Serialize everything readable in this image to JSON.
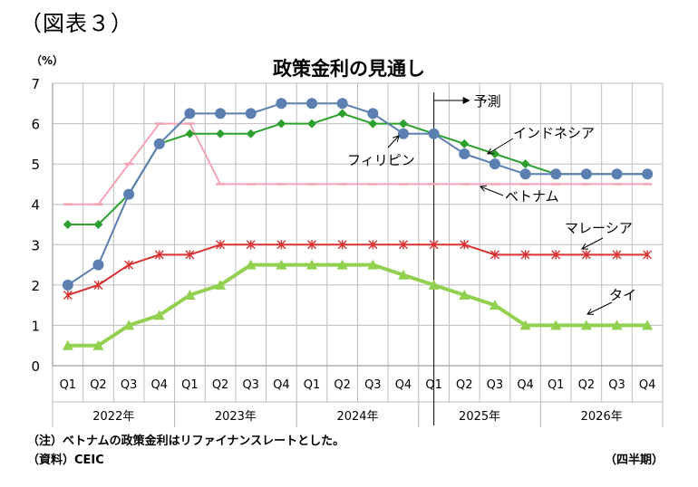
{
  "figure_label": "（図表３）",
  "notes": {
    "note1": "（注）ベトナムの政策金利はリファイナンスレートとした。",
    "source": "（資料）CEIC",
    "period_unit": "（四半期）"
  },
  "chart_data": {
    "type": "line",
    "title": "政策金利の見通し",
    "ylabel": "（%）",
    "ylim": [
      0,
      7
    ],
    "yticks": [
      0,
      1,
      2,
      3,
      4,
      5,
      6,
      7
    ],
    "grid": true,
    "categories": [
      "Q1",
      "Q2",
      "Q3",
      "Q4",
      "Q1",
      "Q2",
      "Q3",
      "Q4",
      "Q1",
      "Q2",
      "Q3",
      "Q4",
      "Q1",
      "Q2",
      "Q3",
      "Q4",
      "Q1",
      "Q2",
      "Q3",
      "Q4"
    ],
    "year_groups": [
      {
        "label": "2022年",
        "span": 4
      },
      {
        "label": "2023年",
        "span": 4
      },
      {
        "label": "2024年",
        "span": 4
      },
      {
        "label": "2025年",
        "span": 4
      },
      {
        "label": "2026年",
        "span": 4
      }
    ],
    "forecast_start_index": 12.5,
    "forecast_label": "予測",
    "series": [
      {
        "name": "ベトナム",
        "color": "#f4a3b4",
        "marker": "dash",
        "width": 2,
        "values": [
          4,
          4,
          5,
          6,
          6,
          4.5,
          4.5,
          4.5,
          4.5,
          4.5,
          4.5,
          4.5,
          4.5,
          4.5,
          4.5,
          4.5,
          4.5,
          4.5,
          4.5,
          4.5
        ]
      },
      {
        "name": "インドネシア",
        "color": "#2ca02c",
        "marker": "diamond",
        "width": 2,
        "values": [
          3.5,
          3.5,
          4.25,
          5.5,
          5.75,
          5.75,
          5.75,
          6,
          6,
          6.25,
          6,
          6,
          5.75,
          5.5,
          5.25,
          5,
          4.75,
          4.75,
          4.75,
          4.75
        ]
      },
      {
        "name": "フィリピン",
        "color": "#5b7fb0",
        "marker": "circle",
        "width": 2,
        "values": [
          2,
          2.5,
          4.25,
          5.5,
          6.25,
          6.25,
          6.25,
          6.5,
          6.5,
          6.5,
          6.25,
          5.75,
          5.75,
          5.25,
          5,
          4.75,
          4.75,
          4.75,
          4.75,
          4.75
        ]
      },
      {
        "name": "マレーシア",
        "color": "#d93030",
        "marker": "star",
        "width": 2,
        "values": [
          1.75,
          2,
          2.5,
          2.75,
          2.75,
          3,
          3,
          3,
          3,
          3,
          3,
          3,
          3,
          3,
          2.75,
          2.75,
          2.75,
          2.75,
          2.75,
          2.75
        ]
      },
      {
        "name": "タイ",
        "color": "#92d050",
        "marker": "triangle",
        "width": 4,
        "values": [
          0.5,
          0.5,
          1,
          1.25,
          1.75,
          2,
          2.5,
          2.5,
          2.5,
          2.5,
          2.5,
          2.25,
          2,
          1.75,
          1.5,
          1,
          1,
          1,
          1,
          1
        ]
      }
    ],
    "annotations": [
      {
        "text": "インドネシア",
        "series": "インドネシア"
      },
      {
        "text": "フィリピン",
        "series": "フィリピン"
      },
      {
        "text": "ベトナム",
        "series": "ベトナム"
      },
      {
        "text": "マレーシア",
        "series": "マレーシア"
      },
      {
        "text": "タイ",
        "series": "タイ"
      }
    ]
  }
}
